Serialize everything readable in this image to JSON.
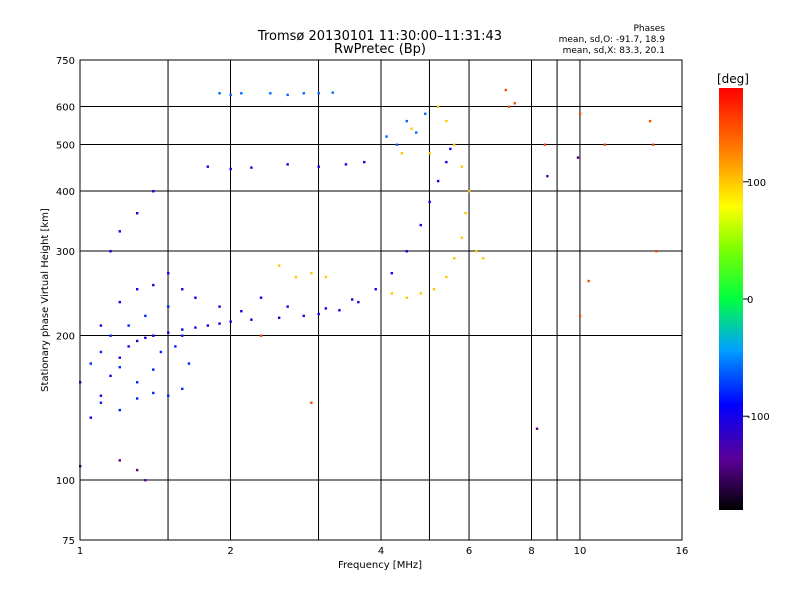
{
  "chart_data": {
    "type": "scatter",
    "title": "Tromsø 20130101 11:30:00–11:31:43",
    "subtitle": "RwPretec (Bp)",
    "xlabel": "Frequency [MHz]",
    "ylabel": "Stationary phase Virtual Height [km]",
    "x_scale": "log",
    "y_scale": "log",
    "xlim": [
      1,
      16
    ],
    "ylim": [
      75,
      750
    ],
    "x_ticks": [
      1,
      2,
      4,
      6,
      8,
      10,
      16
    ],
    "x_tick_labels": [
      "1",
      "2",
      "4",
      "6",
      "8",
      "10",
      "16"
    ],
    "x_grid": [
      1.5,
      2,
      3,
      4,
      5,
      6,
      8,
      9,
      10
    ],
    "y_ticks": [
      75,
      100,
      200,
      300,
      400,
      500,
      600,
      750
    ],
    "y_tick_labels": [
      "75",
      "100",
      "200",
      "300",
      "400",
      "500",
      "600",
      "750"
    ],
    "y_grid": [
      100,
      200,
      300,
      400,
      500,
      600
    ],
    "grid": true,
    "stats": {
      "heading": "Phases",
      "line_o": "mean, sd,O: -91.7, 18.9",
      "line_x": "mean, sd,X:  83.3, 20.1"
    },
    "colorbar": {
      "label": "[deg]",
      "range": [
        -180,
        180
      ],
      "ticks": [
        100,
        0,
        -100
      ],
      "tick_labels": [
        "100",
        "0",
        "-100"
      ]
    },
    "series": [
      {
        "cluster": "o-trace",
        "phase_deg": -100,
        "points": [
          [
            1.05,
            135
          ],
          [
            1.1,
            150
          ],
          [
            1.15,
            165
          ],
          [
            1.2,
            180
          ],
          [
            1.25,
            190
          ],
          [
            1.3,
            195
          ],
          [
            1.35,
            198
          ],
          [
            1.4,
            200
          ],
          [
            1.5,
            203
          ],
          [
            1.6,
            206
          ],
          [
            1.7,
            208
          ],
          [
            1.8,
            210
          ],
          [
            1.9,
            212
          ],
          [
            2.0,
            214
          ],
          [
            2.2,
            216
          ],
          [
            2.5,
            218
          ],
          [
            2.8,
            220
          ],
          [
            3.0,
            222
          ],
          [
            3.3,
            226
          ],
          [
            3.6,
            235
          ],
          [
            3.9,
            250
          ],
          [
            4.2,
            270
          ],
          [
            4.5,
            300
          ],
          [
            4.8,
            340
          ],
          [
            5.0,
            380
          ],
          [
            5.2,
            420
          ],
          [
            5.4,
            460
          ],
          [
            5.5,
            490
          ],
          [
            1.8,
            450
          ],
          [
            2.0,
            445
          ],
          [
            2.2,
            448
          ],
          [
            2.6,
            455
          ],
          [
            3.0,
            450
          ],
          [
            3.4,
            455
          ],
          [
            3.7,
            460
          ],
          [
            1.15,
            300
          ],
          [
            1.2,
            330
          ],
          [
            1.3,
            360
          ],
          [
            1.4,
            400
          ],
          [
            1.5,
            270
          ],
          [
            1.6,
            250
          ],
          [
            1.7,
            240
          ],
          [
            1.9,
            230
          ],
          [
            2.1,
            225
          ],
          [
            2.3,
            240
          ],
          [
            2.6,
            230
          ],
          [
            3.1,
            228
          ],
          [
            3.5,
            238
          ],
          [
            1.1,
            210
          ],
          [
            1.2,
            235
          ],
          [
            1.3,
            250
          ],
          [
            1.4,
            255
          ]
        ]
      },
      {
        "cluster": "o-trace-low",
        "phase_deg": -80,
        "points": [
          [
            1.0,
            160
          ],
          [
            1.05,
            175
          ],
          [
            1.1,
            185
          ],
          [
            1.15,
            200
          ],
          [
            1.2,
            172
          ],
          [
            1.3,
            160
          ],
          [
            1.4,
            152
          ],
          [
            1.5,
            150
          ],
          [
            1.6,
            155
          ],
          [
            1.25,
            210
          ],
          [
            1.35,
            220
          ],
          [
            1.45,
            185
          ],
          [
            1.55,
            190
          ],
          [
            1.65,
            175
          ],
          [
            1.1,
            145
          ],
          [
            1.2,
            140
          ],
          [
            1.3,
            148
          ],
          [
            1.4,
            170
          ],
          [
            1.5,
            230
          ],
          [
            1.6,
            200
          ]
        ]
      },
      {
        "cluster": "upper-band",
        "phase_deg": -60,
        "points": [
          [
            1.9,
            640
          ],
          [
            2.0,
            635
          ],
          [
            2.1,
            640
          ],
          [
            2.4,
            640
          ],
          [
            2.6,
            635
          ],
          [
            2.8,
            640
          ],
          [
            3.0,
            640
          ],
          [
            3.2,
            642
          ],
          [
            4.1,
            520
          ],
          [
            4.3,
            500
          ],
          [
            4.5,
            560
          ],
          [
            4.7,
            530
          ],
          [
            4.9,
            580
          ]
        ]
      },
      {
        "cluster": "x-trace",
        "phase_deg": 100,
        "points": [
          [
            2.5,
            280
          ],
          [
            2.7,
            265
          ],
          [
            2.9,
            270
          ],
          [
            3.1,
            265
          ],
          [
            4.2,
            245
          ],
          [
            4.5,
            240
          ],
          [
            4.8,
            245
          ],
          [
            5.1,
            250
          ],
          [
            5.4,
            265
          ],
          [
            5.6,
            290
          ],
          [
            5.8,
            320
          ],
          [
            5.9,
            360
          ],
          [
            6.0,
            400
          ],
          [
            5.8,
            450
          ],
          [
            5.6,
            500
          ],
          [
            5.4,
            560
          ],
          [
            5.2,
            600
          ],
          [
            4.6,
            540
          ],
          [
            4.4,
            480
          ],
          [
            5.0,
            480
          ],
          [
            6.2,
            300
          ],
          [
            6.4,
            290
          ]
        ]
      },
      {
        "cluster": "scattered",
        "phase_deg": 150,
        "points": [
          [
            7.1,
            650
          ],
          [
            7.4,
            610
          ],
          [
            8.5,
            500
          ],
          [
            10,
            580
          ],
          [
            10,
            220
          ],
          [
            11.2,
            500
          ],
          [
            13.8,
            560
          ],
          [
            14,
            500
          ],
          [
            14.2,
            300
          ],
          [
            10.4,
            260
          ],
          [
            2.3,
            200
          ],
          [
            2.9,
            145
          ],
          [
            7.2,
            600
          ]
        ]
      },
      {
        "cluster": "noise",
        "phase_deg": -140,
        "points": [
          [
            1.2,
            110
          ],
          [
            1.3,
            105
          ],
          [
            1.35,
            100
          ],
          [
            8.2,
            128
          ],
          [
            9.9,
            470
          ],
          [
            8.6,
            430
          ],
          [
            1.0,
            107
          ]
        ]
      }
    ]
  }
}
